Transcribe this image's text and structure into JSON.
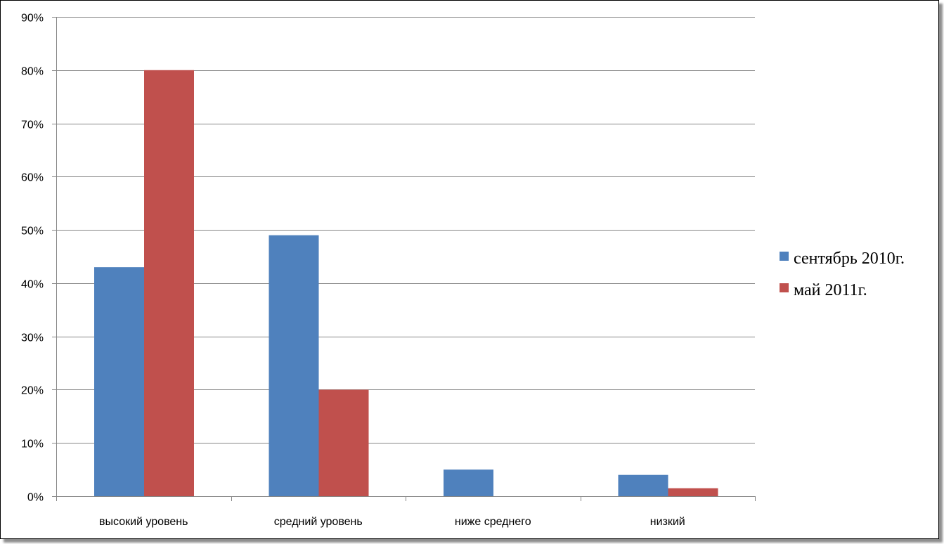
{
  "chart_data": {
    "type": "bar",
    "categories": [
      "высокий уровень",
      "средний уровень",
      "ниже среднего",
      "низкий"
    ],
    "series": [
      {
        "name": "сентябрь 2010г.",
        "color": "#4F81BD",
        "values": [
          43,
          49,
          5,
          4
        ]
      },
      {
        "name": "май 2011г.",
        "color": "#C0504D",
        "values": [
          80,
          20,
          0,
          1.5
        ]
      }
    ],
    "ylim": [
      0,
      90
    ],
    "yticks": [
      "0%",
      "10%",
      "20%",
      "30%",
      "40%",
      "50%",
      "60%",
      "70%",
      "80%",
      "90%"
    ],
    "grid": true,
    "legend": "right"
  }
}
